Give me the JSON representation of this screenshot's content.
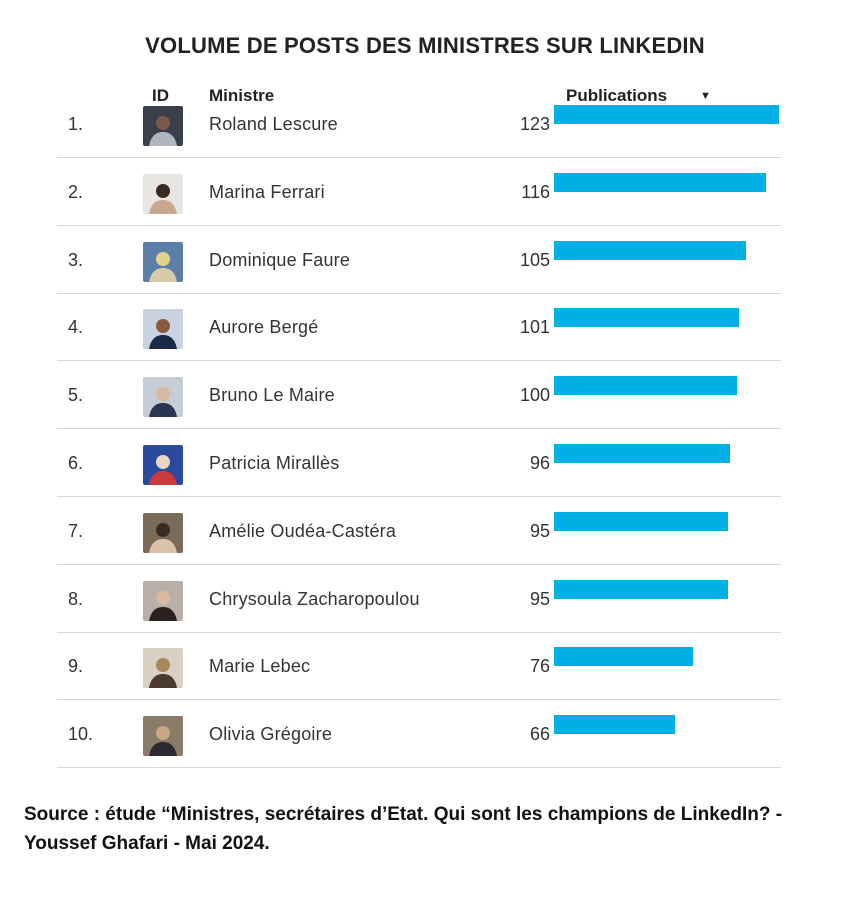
{
  "title": "VOLUME DE POSTS DES MINISTRES SUR LINKEDIN",
  "header": {
    "id_label": "ID",
    "minister_label": "Ministre",
    "publications_label": "Publications",
    "sort_icon": "▼"
  },
  "chart_data": {
    "type": "table",
    "title": "VOLUME DE POSTS DES MINISTRES SUR LINKEDIN",
    "columns": [
      "ID",
      "Ministre",
      "Publications"
    ],
    "rows": [
      {
        "rank": "1.",
        "name": "Roland Lescure",
        "value": 123,
        "avatar_colors": [
          "#3a3f4a",
          "#b0b6bf",
          "#7c5a4a"
        ]
      },
      {
        "rank": "2.",
        "name": "Marina Ferrari",
        "value": 116,
        "avatar_colors": [
          "#e8e6e3",
          "#c9a88f",
          "#3a2a22"
        ]
      },
      {
        "rank": "3.",
        "name": "Dominique Faure",
        "value": 105,
        "avatar_colors": [
          "#5b7fa8",
          "#d8c9a8",
          "#e3d28a"
        ]
      },
      {
        "rank": "4.",
        "name": "Aurore Bergé",
        "value": 101,
        "avatar_colors": [
          "#c9d2e0",
          "#1c2a4a",
          "#8a5a40"
        ]
      },
      {
        "rank": "5.",
        "name": "Bruno Le Maire",
        "value": 100,
        "avatar_colors": [
          "#c7cdd6",
          "#2a3550",
          "#d8b8a0"
        ]
      },
      {
        "rank": "6.",
        "name": "Patricia Mirallès",
        "value": 96,
        "avatar_colors": [
          "#2a4aa0",
          "#c93a3a",
          "#e8d8c0"
        ]
      },
      {
        "rank": "7.",
        "name": "Amélie Oudéa-Castéra",
        "value": 95,
        "avatar_colors": [
          "#7a6a5a",
          "#d9c2a8",
          "#3a2a22"
        ]
      },
      {
        "rank": "8.",
        "name": "Chrysoula Zacharopoulou",
        "value": 95,
        "avatar_colors": [
          "#b8b0a8",
          "#2a2220",
          "#d9b8a0"
        ]
      },
      {
        "rank": "9.",
        "name": "Marie Lebec",
        "value": 76,
        "avatar_colors": [
          "#d8d0c0",
          "#4a3a30",
          "#a8885a"
        ]
      },
      {
        "rank": "10.",
        "name": "Olivia Grégoire",
        "value": 66,
        "avatar_colors": [
          "#8a7a68",
          "#2a2a30",
          "#c8a888"
        ]
      }
    ],
    "bar_color": "#00afe3",
    "value_max": 123,
    "grid": false
  },
  "source": "Source : étude “Ministres, secrétaires d’Etat. Qui sont les champions de LinkedIn? - Youssef Ghafari - Mai 2024."
}
